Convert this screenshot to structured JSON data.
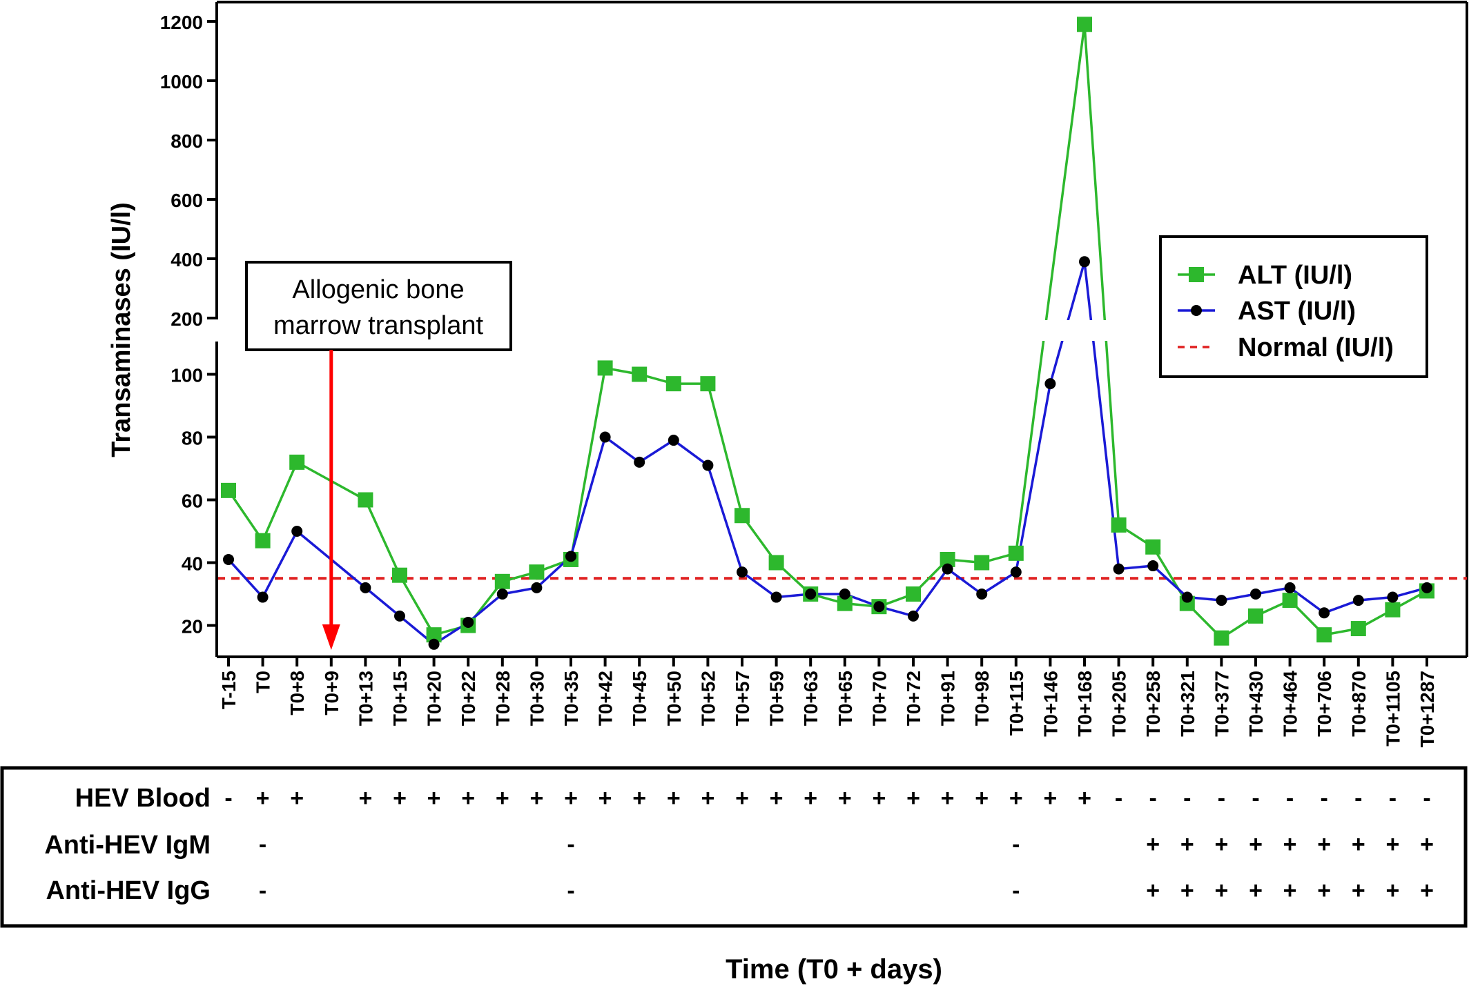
{
  "chart_data": {
    "type": "line",
    "title": "",
    "xlabel": "Time (T0 + days)",
    "ylabel": "Transaminases (IU/l)",
    "y_axis": {
      "lower_segment": {
        "range": [
          10,
          110
        ],
        "ticks": [
          "20",
          "40",
          "60",
          "80",
          "100"
        ]
      },
      "upper_segment": {
        "range": [
          200,
          1200
        ],
        "ticks": [
          "200",
          "400",
          "600",
          "800",
          "1000",
          "1200"
        ]
      },
      "broken": true
    },
    "categories": [
      "T-15",
      "T0",
      "T0+8",
      "T0+9",
      "T0+13",
      "T0+15",
      "T0+20",
      "T0+22",
      "T0+28",
      "T0+30",
      "T0+35",
      "T0+42",
      "T0+45",
      "T0+50",
      "T0+52",
      "T0+57",
      "T0+59",
      "T0+63",
      "T0+65",
      "T0+70",
      "T0+72",
      "T0+91",
      "T0+98",
      "T0+115",
      "T0+146",
      "T0+168",
      "T0+205",
      "T0+258",
      "T0+321",
      "T0+377",
      "T0+430",
      "T0+464",
      "T0+706",
      "T0+870",
      "T0+1105",
      "T0+1287"
    ],
    "series": [
      {
        "name": "ALT (IU/l)",
        "color": "#2db82d",
        "marker": "square",
        "values": [
          63,
          47,
          72,
          null,
          60,
          36,
          17,
          20,
          34,
          37,
          41,
          102,
          100,
          97,
          97,
          55,
          40,
          30,
          27,
          26,
          30,
          41,
          40,
          43,
          null,
          1190,
          52,
          45,
          27,
          16,
          23,
          28,
          17,
          19,
          25,
          31
        ]
      },
      {
        "name": "AST (IU/l)",
        "color": "#1a1ad6",
        "marker": "circle",
        "values": [
          41,
          29,
          50,
          null,
          32,
          23,
          14,
          21,
          30,
          32,
          42,
          80,
          72,
          79,
          71,
          37,
          29,
          30,
          30,
          26,
          23,
          38,
          30,
          37,
          97,
          390,
          38,
          39,
          29,
          28,
          30,
          32,
          24,
          28,
          29,
          32
        ]
      },
      {
        "name": "Normal (IU/l)",
        "color": "#e02020",
        "style": "dashed",
        "constant": 35
      }
    ],
    "legend_position": "top-right",
    "annotation": {
      "text_lines": [
        "Allogenic bone",
        "marrow transplant"
      ],
      "points_to": "T0+9",
      "arrow_color": "#ff0000"
    },
    "grid": false
  },
  "table": {
    "rows": [
      {
        "label": "HEV Blood",
        "values": [
          "-",
          "+",
          "+",
          "",
          "+",
          "+",
          "+",
          "+",
          "+",
          "+",
          "+",
          "+",
          "+",
          "+",
          "+",
          "+",
          "+",
          "+",
          "+",
          "+",
          "+",
          "+",
          "+",
          "+",
          "+",
          "+",
          "-",
          "-",
          "-",
          "-",
          "-",
          "-",
          "-",
          "-",
          "-",
          "-"
        ]
      },
      {
        "label": "Anti-HEV IgM",
        "values": [
          "",
          "-",
          "",
          "",
          "",
          "",
          "",
          "",
          "",
          "",
          "-",
          "",
          "",
          "",
          "",
          "",
          "",
          "",
          "",
          "",
          "",
          "",
          "",
          "-",
          "",
          "",
          "",
          "+",
          "+",
          "+",
          "+",
          "+",
          "+",
          "+",
          "+",
          "+"
        ]
      },
      {
        "label": "Anti-HEV IgG",
        "values": [
          "",
          "-",
          "",
          "",
          "",
          "",
          "",
          "",
          "",
          "",
          "-",
          "",
          "",
          "",
          "",
          "",
          "",
          "",
          "",
          "",
          "",
          "",
          "",
          "-",
          "",
          "",
          "",
          "+",
          "+",
          "+",
          "+",
          "+",
          "+",
          "+",
          "+",
          "+"
        ]
      }
    ]
  }
}
